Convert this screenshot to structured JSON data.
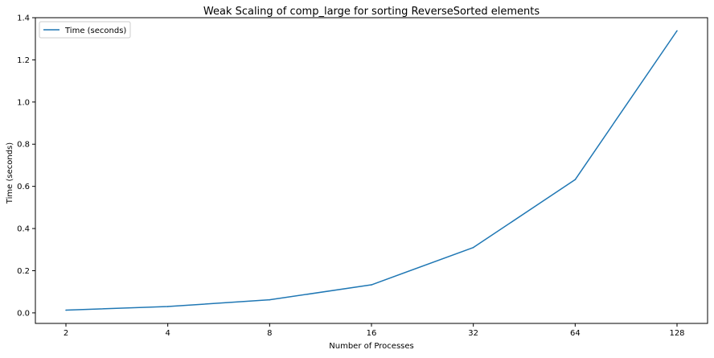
{
  "chart_data": {
    "type": "line",
    "title": "Weak Scaling of comp_large for sorting ReverseSorted elements",
    "xlabel": "Number of Processes",
    "ylabel": "Time (seconds)",
    "x_scale": "categorical",
    "categories": [
      "2",
      "4",
      "8",
      "16",
      "32",
      "64",
      "128"
    ],
    "ylim": [
      -0.05,
      1.4
    ],
    "yticks": [
      "0.0",
      "0.2",
      "0.4",
      "0.6",
      "0.8",
      "1.0",
      "1.2",
      "1.4"
    ],
    "grid": false,
    "legend_position": "top-left",
    "series": [
      {
        "name": "Time (seconds)",
        "color": "#1f77b4",
        "values": [
          0.013,
          0.03,
          0.062,
          0.133,
          0.31,
          0.632,
          1.338
        ]
      }
    ]
  }
}
